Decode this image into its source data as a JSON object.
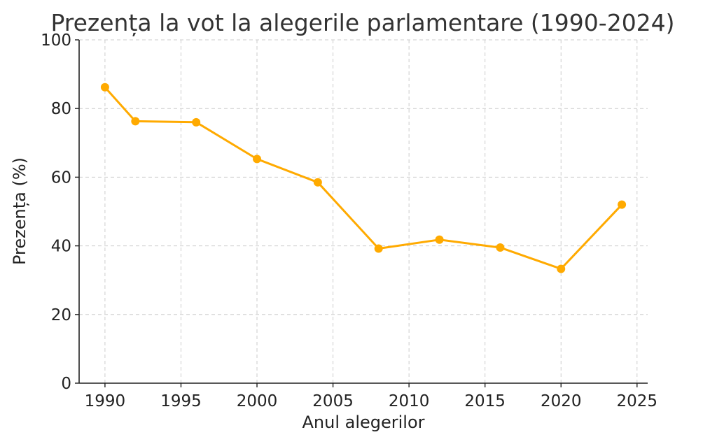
{
  "chart_data": {
    "type": "line",
    "title": "Prezența la vot la alegerile parlamentare (1990-2024)",
    "xlabel": "Anul alegerilor",
    "ylabel": "Prezența (%)",
    "xlim": [
      1988.3,
      2025.7
    ],
    "ylim": [
      0,
      100
    ],
    "xticks": [
      1990,
      1995,
      2000,
      2005,
      2010,
      2015,
      2020,
      2025
    ],
    "yticks": [
      0,
      20,
      40,
      60,
      80,
      100
    ],
    "grid": true,
    "series": [
      {
        "color": "#FFAA00",
        "x": [
          1990,
          1992,
          1996,
          2000,
          2004,
          2008,
          2012,
          2016,
          2020,
          2024
        ],
        "y": [
          86.2,
          76.3,
          76.0,
          65.3,
          58.5,
          39.2,
          41.8,
          39.5,
          33.3,
          52.0
        ]
      }
    ]
  }
}
